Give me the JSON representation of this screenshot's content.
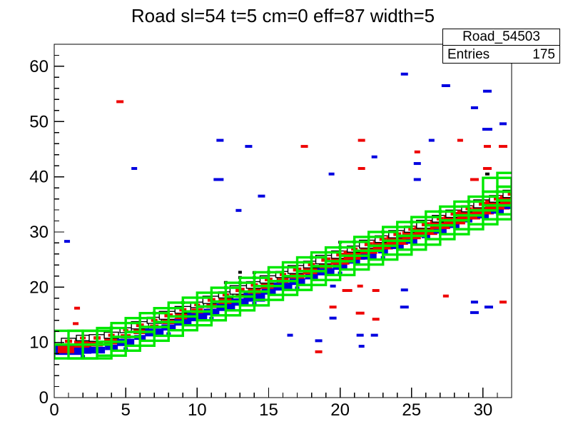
{
  "title": "Road sl=54 t=5 cm=0 eff=87 width=5",
  "stats": {
    "name": "Road_54503",
    "entries_label": "Entries",
    "entries_value": "175"
  },
  "colors": {
    "road_green": "#00e800",
    "hits_red": "#ee0000",
    "hits_blue": "#0000e0",
    "marker_black": "#000000",
    "axis": "#000000",
    "background": "#ffffff"
  },
  "chart_data": {
    "type": "heatmap",
    "subtype": "root-th2-box",
    "title": "Road sl=54 t=5 cm=0 eff=87 width=5",
    "xlabel": "",
    "ylabel": "",
    "xlim": [
      0,
      32
    ],
    "ylim": [
      0,
      64
    ],
    "x_major_ticks": [
      0,
      5,
      10,
      15,
      20,
      25,
      30
    ],
    "x_minor_step": 1,
    "y_major_ticks": [
      0,
      10,
      20,
      30,
      40,
      50,
      60
    ],
    "y_minor_step": 2,
    "grid": "off",
    "legend": "none",
    "road_band": {
      "box_width_x": 2,
      "row_height_y": 2.5,
      "description": "green road boxes: two 2.5-unit rows stacked per x-bin (total width=5), centers rise from y=9.6 at x=0 to y=35.7 at x=31",
      "bins": [
        {
          "c": 9.6,
          "w": 1.0,
          "r": 1.5,
          "b": 1.85,
          "d": 0,
          "s": 0,
          "big": 1
        },
        {
          "c": 9.6,
          "w": 0.9,
          "r": 1.2,
          "b": 1.2,
          "d": 0,
          "s": 0.3
        },
        {
          "c": 9.6,
          "w": 1.1,
          "r": 0.8,
          "b": 1.1,
          "d": 0,
          "s": 0
        },
        {
          "c": 10.1,
          "w": 1.0,
          "r": 1.0,
          "b": 0.9,
          "d": 1,
          "s": 0
        },
        {
          "c": 11.0,
          "w": 0.8,
          "r": 0.7,
          "b": 1.2,
          "d": 0,
          "s": 0.3
        },
        {
          "c": 11.9,
          "w": 1.2,
          "r": 0.9,
          "b": 0.8,
          "d": 0,
          "s": 0
        },
        {
          "c": 12.8,
          "w": 1.0,
          "r": 0.6,
          "b": 1.3,
          "d": 1,
          "s": 0
        },
        {
          "c": 13.7,
          "w": 1.3,
          "r": 0.9,
          "b": 1.0,
          "d": 0,
          "s": 0.3
        },
        {
          "c": 14.7,
          "w": 1.1,
          "r": 1.1,
          "b": 1.2,
          "d": 1,
          "s": 0
        },
        {
          "c": 15.6,
          "w": 0.9,
          "r": 0.8,
          "b": 1.4,
          "d": 0,
          "s": 0
        },
        {
          "c": 16.5,
          "w": 1.2,
          "r": 0.7,
          "b": 1.1,
          "d": 0,
          "s": 0.3
        },
        {
          "c": 17.4,
          "w": 1.0,
          "r": 1.0,
          "b": 1.3,
          "d": 2,
          "s": 0
        },
        {
          "c": 18.3,
          "w": 1.4,
          "r": 0.6,
          "b": 1.2,
          "d": 3,
          "s": 0
        },
        {
          "c": 19.2,
          "w": 1.1,
          "r": 0.9,
          "b": 1.5,
          "d": 2,
          "s": 0.3
        },
        {
          "c": 20.2,
          "w": 1.2,
          "r": 1.1,
          "b": 1.0,
          "d": 1,
          "s": 0
        },
        {
          "c": 21.1,
          "w": 1.0,
          "r": 0.8,
          "b": 1.3,
          "d": 0,
          "s": 0
        },
        {
          "c": 22.0,
          "w": 1.3,
          "r": 1.0,
          "b": 1.1,
          "d": 0,
          "s": 0.3
        },
        {
          "c": 22.9,
          "w": 1.1,
          "r": 1.2,
          "b": 0.9,
          "d": 1,
          "s": 0
        },
        {
          "c": 23.8,
          "w": 1.4,
          "r": 0.9,
          "b": 1.2,
          "d": 0,
          "s": 0
        },
        {
          "c": 24.7,
          "w": 1.2,
          "r": 1.3,
          "b": 1.0,
          "d": 2,
          "s": 0.3
        },
        {
          "c": 25.7,
          "w": 1.0,
          "r": 1.5,
          "b": 0.8,
          "d": 1,
          "s": 0
        },
        {
          "c": 26.6,
          "w": 1.3,
          "r": 1.2,
          "b": 1.1,
          "d": 0,
          "s": 0
        },
        {
          "c": 27.5,
          "w": 1.1,
          "r": 1.4,
          "b": 0.7,
          "d": 1,
          "s": 0.3
        },
        {
          "c": 28.4,
          "w": 1.2,
          "r": 1.5,
          "b": 0.9,
          "d": 0,
          "s": 0
        },
        {
          "c": 29.3,
          "w": 1.0,
          "r": 1.3,
          "b": 0.8,
          "d": 1,
          "s": 0
        },
        {
          "c": 30.2,
          "w": 1.3,
          "r": 1.6,
          "b": 0.6,
          "d": 0,
          "s": 0
        },
        {
          "c": 31.2,
          "w": 1.1,
          "r": 1.4,
          "b": 0.9,
          "d": 1,
          "s": 0
        },
        {
          "c": 32.1,
          "w": 1.2,
          "r": 1.5,
          "b": 0.7,
          "d": 0,
          "s": 0
        },
        {
          "c": 33.0,
          "w": 1.0,
          "r": 1.6,
          "b": 0.5,
          "d": 1,
          "s": 0
        },
        {
          "c": 33.9,
          "w": 1.3,
          "r": 1.5,
          "b": 0.8,
          "d": 0,
          "s": 0
        },
        {
          "c": 34.8,
          "w": 1.1,
          "r": 1.7,
          "b": 0.9,
          "d": 1,
          "s": 0,
          "tall": 1
        },
        {
          "c": 35.7,
          "w": 1.2,
          "r": 1.6,
          "b": 1.0,
          "d": 0,
          "s": 0,
          "tall": 1
        }
      ]
    },
    "outliers": [
      {
        "x": 4.6,
        "y": 53.6,
        "col": "r",
        "w": 0.5
      },
      {
        "x": 24.5,
        "y": 58.6,
        "col": "b",
        "w": 0.5
      },
      {
        "x": 27.4,
        "y": 56.5,
        "col": "b",
        "w": 0.6
      },
      {
        "x": 30.3,
        "y": 55.5,
        "col": "b",
        "w": 0.6
      },
      {
        "x": 29.4,
        "y": 52.5,
        "col": "b",
        "w": 0.5
      },
      {
        "x": 31.4,
        "y": 49.6,
        "col": "b",
        "w": 0.5
      },
      {
        "x": 30.3,
        "y": 48.6,
        "col": "b",
        "w": 0.7
      },
      {
        "x": 11.6,
        "y": 46.6,
        "col": "b",
        "w": 0.5
      },
      {
        "x": 13.6,
        "y": 45.5,
        "col": "b",
        "w": 0.5
      },
      {
        "x": 21.5,
        "y": 46.6,
        "col": "r",
        "w": 0.5
      },
      {
        "x": 26.4,
        "y": 46.6,
        "col": "b",
        "w": 0.4
      },
      {
        "x": 28.4,
        "y": 46.6,
        "col": "r",
        "w": 0.4
      },
      {
        "x": 17.5,
        "y": 45.5,
        "col": "r",
        "w": 0.5
      },
      {
        "x": 30.3,
        "y": 45.5,
        "col": "r",
        "w": 0.5
      },
      {
        "x": 31.4,
        "y": 45.5,
        "col": "r",
        "w": 0.6
      },
      {
        "x": 25.4,
        "y": 44.5,
        "col": "r",
        "w": 0.4
      },
      {
        "x": 22.4,
        "y": 43.6,
        "col": "b",
        "w": 0.4
      },
      {
        "x": 25.4,
        "y": 42.4,
        "col": "b",
        "w": 0.5
      },
      {
        "x": 5.6,
        "y": 41.5,
        "col": "b",
        "w": 0.4
      },
      {
        "x": 21.5,
        "y": 41.5,
        "col": "r",
        "w": 0.5
      },
      {
        "x": 30.3,
        "y": 41.5,
        "col": "r",
        "w": 0.6
      },
      {
        "x": 19.4,
        "y": 40.5,
        "col": "b",
        "w": 0.4
      },
      {
        "x": 30.3,
        "y": 40.5,
        "col": "k",
        "w": 0.3
      },
      {
        "x": 11.5,
        "y": 39.5,
        "col": "b",
        "w": 0.7
      },
      {
        "x": 25.4,
        "y": 39.5,
        "col": "b",
        "w": 0.5
      },
      {
        "x": 29.4,
        "y": 39.5,
        "col": "r",
        "w": 0.6
      },
      {
        "x": 14.5,
        "y": 36.5,
        "col": "b",
        "w": 0.5
      },
      {
        "x": 12.9,
        "y": 33.9,
        "col": "b",
        "w": 0.4
      },
      {
        "x": 0.9,
        "y": 28.3,
        "col": "b",
        "w": 0.4
      },
      {
        "x": 1.6,
        "y": 16.2,
        "col": "r",
        "w": 0.4
      },
      {
        "x": 1.5,
        "y": 13.4,
        "col": "r",
        "w": 0.4
      },
      {
        "x": 19.5,
        "y": 20.2,
        "col": "b",
        "w": 0.4
      },
      {
        "x": 20.5,
        "y": 19.4,
        "col": "r",
        "w": 0.7
      },
      {
        "x": 21.4,
        "y": 20.2,
        "col": "r",
        "w": 0.4
      },
      {
        "x": 22.5,
        "y": 19.4,
        "col": "r",
        "w": 0.5
      },
      {
        "x": 24.5,
        "y": 19.5,
        "col": "b",
        "w": 0.5
      },
      {
        "x": 27.4,
        "y": 18.4,
        "col": "r",
        "w": 0.4
      },
      {
        "x": 29.4,
        "y": 17.3,
        "col": "b",
        "w": 0.5
      },
      {
        "x": 31.4,
        "y": 17.3,
        "col": "r",
        "w": 0.5
      },
      {
        "x": 19.5,
        "y": 16.4,
        "col": "r",
        "w": 0.5
      },
      {
        "x": 24.5,
        "y": 16.4,
        "col": "b",
        "w": 0.6
      },
      {
        "x": 30.4,
        "y": 16.4,
        "col": "b",
        "w": 0.6
      },
      {
        "x": 21.4,
        "y": 15.3,
        "col": "r",
        "w": 0.6
      },
      {
        "x": 29.4,
        "y": 15.4,
        "col": "b",
        "w": 0.6
      },
      {
        "x": 19.5,
        "y": 14.4,
        "col": "b",
        "w": 0.5
      },
      {
        "x": 22.5,
        "y": 14.2,
        "col": "r",
        "w": 0.5
      },
      {
        "x": 16.5,
        "y": 11.3,
        "col": "b",
        "w": 0.4
      },
      {
        "x": 21.4,
        "y": 11.3,
        "col": "b",
        "w": 0.5
      },
      {
        "x": 22.4,
        "y": 11.3,
        "col": "b",
        "w": 0.5
      },
      {
        "x": 18.5,
        "y": 10.3,
        "col": "b",
        "w": 0.5
      },
      {
        "x": 21.5,
        "y": 9.3,
        "col": "b",
        "w": 0.4
      },
      {
        "x": 18.5,
        "y": 8.3,
        "col": "r",
        "w": 0.5
      }
    ]
  }
}
